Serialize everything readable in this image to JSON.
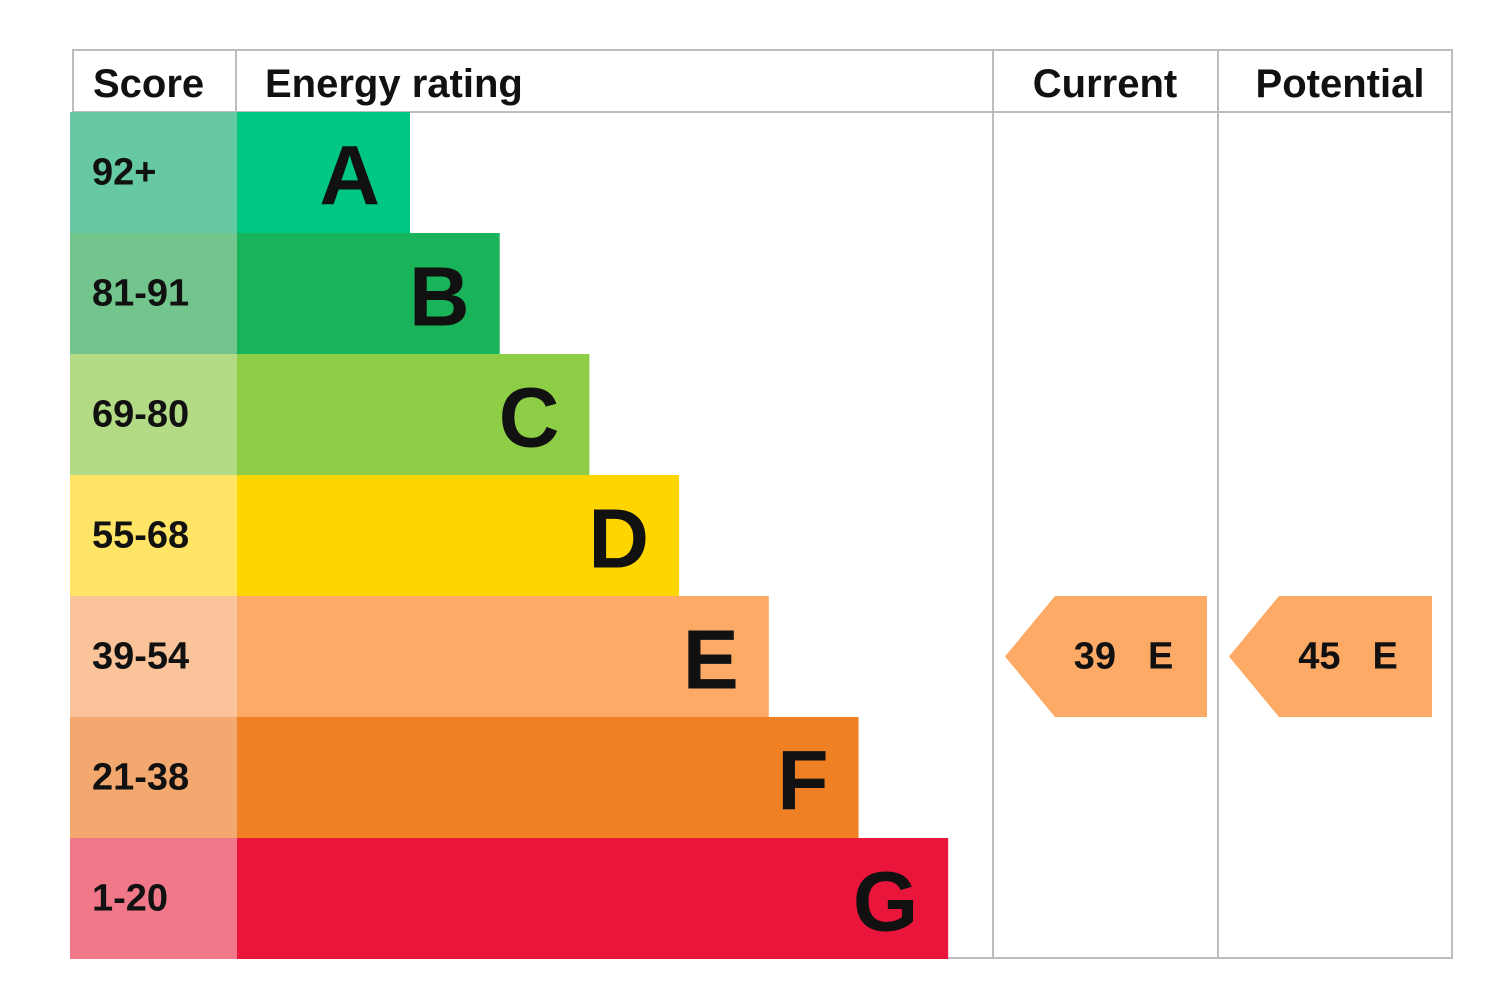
{
  "header": {
    "score": "Score",
    "energy_rating": "Energy rating",
    "current": "Current",
    "potential": "Potential"
  },
  "rows": [
    {
      "score": "92+",
      "rating": "A",
      "color": "#00c781",
      "score_color": "#66c9a2"
    },
    {
      "score": "81-91",
      "rating": "B",
      "color": "#19b459",
      "score_color": "#72c58c"
    },
    {
      "score": "69-80",
      "rating": "C",
      "color": "#8dce46",
      "score_color": "#b3db85"
    },
    {
      "score": "55-68",
      "rating": "D",
      "color": "#ffd500",
      "score_color": "#ffe466"
    },
    {
      "score": "39-54",
      "rating": "E",
      "color": "#fcaa65",
      "score_color": "#fbc39a"
    },
    {
      "score": "21-38",
      "rating": "F",
      "color": "#ef8023",
      "score_color": "#f2a86e"
    },
    {
      "score": "1-20",
      "rating": "G",
      "color": "#e9153b",
      "score_color": "#f07889"
    }
  ],
  "current": {
    "score": 39,
    "rating": "E"
  },
  "potential": {
    "score": 45,
    "rating": "E"
  }
}
